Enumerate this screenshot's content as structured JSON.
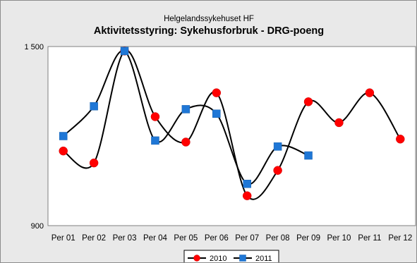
{
  "chart_data": {
    "type": "line",
    "subtitle": "Helgelandssykehuset HF",
    "title": "Aktivitetsstyring: Sykehusforbruk - DRG-poeng",
    "xlabel": "",
    "ylabel": "",
    "categories": [
      "Per 01",
      "Per 02",
      "Per 03",
      "Per 04",
      "Per 05",
      "Per 06",
      "Per 07",
      "Per 08",
      "Per 09",
      "Per 10",
      "Per 11",
      "Per 12"
    ],
    "ylim": [
      900,
      1500
    ],
    "yticks": [
      "900",
      "1 500"
    ],
    "grid": false,
    "legend_position": "bottom",
    "series": [
      {
        "name": "2010",
        "color": "#ff0000",
        "marker": "circle",
        "values": [
          1150,
          1110,
          1485,
          1265,
          1180,
          1345,
          1000,
          1085,
          1315,
          1245,
          1345,
          1190
        ]
      },
      {
        "name": "2011",
        "color": "#1f77d6",
        "marker": "square",
        "values": [
          1200,
          1300,
          1485,
          1185,
          1290,
          1275,
          1040,
          1165,
          1135,
          null,
          null,
          null
        ]
      }
    ]
  }
}
